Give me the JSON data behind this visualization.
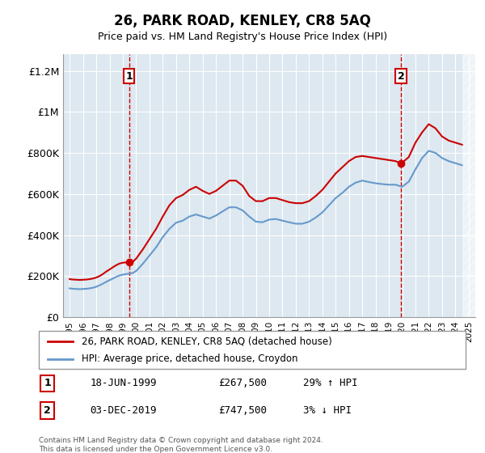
{
  "title": "26, PARK ROAD, KENLEY, CR8 5AQ",
  "subtitle": "Price paid vs. HM Land Registry's House Price Index (HPI)",
  "footer": "Contains HM Land Registry data © Crown copyright and database right 2024.\nThis data is licensed under the Open Government Licence v3.0.",
  "legend_line1": "26, PARK ROAD, KENLEY, CR8 5AQ (detached house)",
  "legend_line2": "HPI: Average price, detached house, Croydon",
  "sale1_label": "1",
  "sale1_date": "18-JUN-1999",
  "sale1_price": "£267,500",
  "sale1_hpi": "29% ↑ HPI",
  "sale1_year": 1999.46,
  "sale1_value": 267500,
  "sale2_label": "2",
  "sale2_date": "03-DEC-2019",
  "sale2_price": "£747,500",
  "sale2_hpi": "3% ↓ HPI",
  "sale2_year": 2019.92,
  "sale2_value": 747500,
  "xlim": [
    1994.5,
    2025.5
  ],
  "ylim": [
    0,
    1280000
  ],
  "yticks": [
    0,
    200000,
    400000,
    600000,
    800000,
    1000000,
    1200000
  ],
  "ytick_labels": [
    "£0",
    "£200K",
    "£400K",
    "£600K",
    "£800K",
    "£1M",
    "£1.2M"
  ],
  "red_color": "#cc0000",
  "blue_color": "#6699cc",
  "bg_color": "#dde8f0",
  "grid_color": "#ffffff",
  "hatch_color": "#cccccc",
  "red_line_data": {
    "years": [
      1995.0,
      1995.25,
      1995.5,
      1995.75,
      1996.0,
      1996.25,
      1996.5,
      1996.75,
      1997.0,
      1997.25,
      1997.5,
      1997.75,
      1998.0,
      1998.25,
      1998.5,
      1998.75,
      1999.0,
      1999.25,
      1999.46,
      1999.75,
      2000.0,
      2000.5,
      2001.0,
      2001.5,
      2002.0,
      2002.5,
      2003.0,
      2003.5,
      2004.0,
      2004.5,
      2005.0,
      2005.5,
      2006.0,
      2006.5,
      2007.0,
      2007.5,
      2008.0,
      2008.5,
      2009.0,
      2009.5,
      2010.0,
      2010.5,
      2011.0,
      2011.5,
      2012.0,
      2012.5,
      2013.0,
      2013.5,
      2014.0,
      2014.5,
      2015.0,
      2015.5,
      2016.0,
      2016.5,
      2017.0,
      2017.5,
      2018.0,
      2018.5,
      2019.0,
      2019.5,
      2019.92,
      2020.5,
      2021.0,
      2021.5,
      2022.0,
      2022.5,
      2023.0,
      2023.5,
      2024.0,
      2024.5
    ],
    "values": [
      185000,
      183000,
      182000,
      181000,
      182000,
      183000,
      185000,
      188000,
      193000,
      200000,
      210000,
      222000,
      232000,
      243000,
      253000,
      261000,
      265000,
      267000,
      267500,
      270000,
      285000,
      330000,
      380000,
      430000,
      490000,
      545000,
      580000,
      595000,
      620000,
      635000,
      615000,
      600000,
      615000,
      640000,
      665000,
      665000,
      640000,
      590000,
      565000,
      565000,
      580000,
      580000,
      570000,
      560000,
      555000,
      555000,
      565000,
      590000,
      620000,
      660000,
      700000,
      730000,
      760000,
      780000,
      785000,
      780000,
      775000,
      770000,
      765000,
      760000,
      747500,
      780000,
      850000,
      900000,
      940000,
      920000,
      880000,
      860000,
      850000,
      840000
    ]
  },
  "blue_line_data": {
    "years": [
      1995.0,
      1995.25,
      1995.5,
      1995.75,
      1996.0,
      1996.25,
      1996.5,
      1996.75,
      1997.0,
      1997.25,
      1997.5,
      1997.75,
      1998.0,
      1998.25,
      1998.5,
      1998.75,
      1999.0,
      1999.25,
      1999.5,
      1999.75,
      2000.0,
      2000.5,
      2001.0,
      2001.5,
      2002.0,
      2002.5,
      2003.0,
      2003.5,
      2004.0,
      2004.5,
      2005.0,
      2005.5,
      2006.0,
      2006.5,
      2007.0,
      2007.5,
      2008.0,
      2008.5,
      2009.0,
      2009.5,
      2010.0,
      2010.5,
      2011.0,
      2011.5,
      2012.0,
      2012.5,
      2013.0,
      2013.5,
      2014.0,
      2014.5,
      2015.0,
      2015.5,
      2016.0,
      2016.5,
      2017.0,
      2017.5,
      2018.0,
      2018.5,
      2019.0,
      2019.5,
      2020.0,
      2020.5,
      2021.0,
      2021.5,
      2022.0,
      2022.5,
      2023.0,
      2023.5,
      2024.0,
      2024.5
    ],
    "values": [
      140000,
      138000,
      137000,
      136000,
      137000,
      138000,
      140000,
      143000,
      148000,
      155000,
      163000,
      172000,
      180000,
      188000,
      196000,
      203000,
      207000,
      210000,
      212000,
      215000,
      225000,
      260000,
      300000,
      340000,
      390000,
      430000,
      460000,
      470000,
      490000,
      500000,
      490000,
      480000,
      495000,
      515000,
      535000,
      535000,
      520000,
      490000,
      465000,
      462000,
      475000,
      478000,
      470000,
      462000,
      455000,
      455000,
      465000,
      485000,
      510000,
      545000,
      580000,
      605000,
      635000,
      655000,
      665000,
      658000,
      652000,
      648000,
      645000,
      645000,
      635000,
      660000,
      720000,
      775000,
      810000,
      800000,
      775000,
      760000,
      750000,
      740000
    ]
  }
}
